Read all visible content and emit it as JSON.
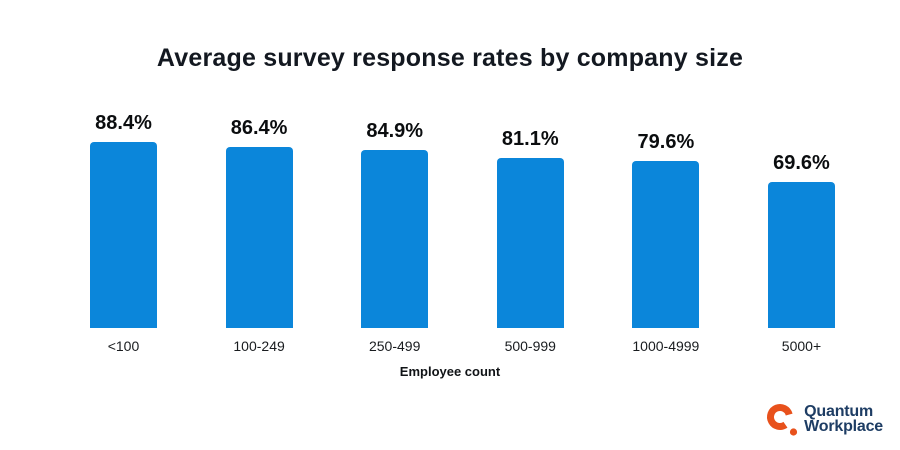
{
  "title": "Average survey response rates by company size",
  "chart_data": {
    "type": "bar",
    "title": "Average survey response rates by company size",
    "categories": [
      "<100",
      "100-249",
      "250-499",
      "500-999",
      "1000-4999",
      "5000+"
    ],
    "values": [
      88.4,
      86.4,
      84.9,
      81.1,
      79.6,
      69.6
    ],
    "value_labels": [
      "88.4%",
      "86.4%",
      "84.9%",
      "81.1%",
      "79.6%",
      "69.6%"
    ],
    "xlabel": "Employee count",
    "ylabel": "",
    "ylim": [
      0,
      100
    ],
    "grid": false,
    "legend": false,
    "bar_color": "#0b86da"
  },
  "logo": {
    "line1": "Quantum",
    "line2": "Workplace",
    "icon": "quantum-q-icon",
    "icon_color": "#e8511c",
    "text_color": "#1e3d64"
  },
  "colors": {
    "bar": "#0b86da",
    "title_text": "#131820",
    "value_label_text": "#0b0d0f",
    "category_label_text": "#191c1f",
    "background": "#ffffff"
  }
}
